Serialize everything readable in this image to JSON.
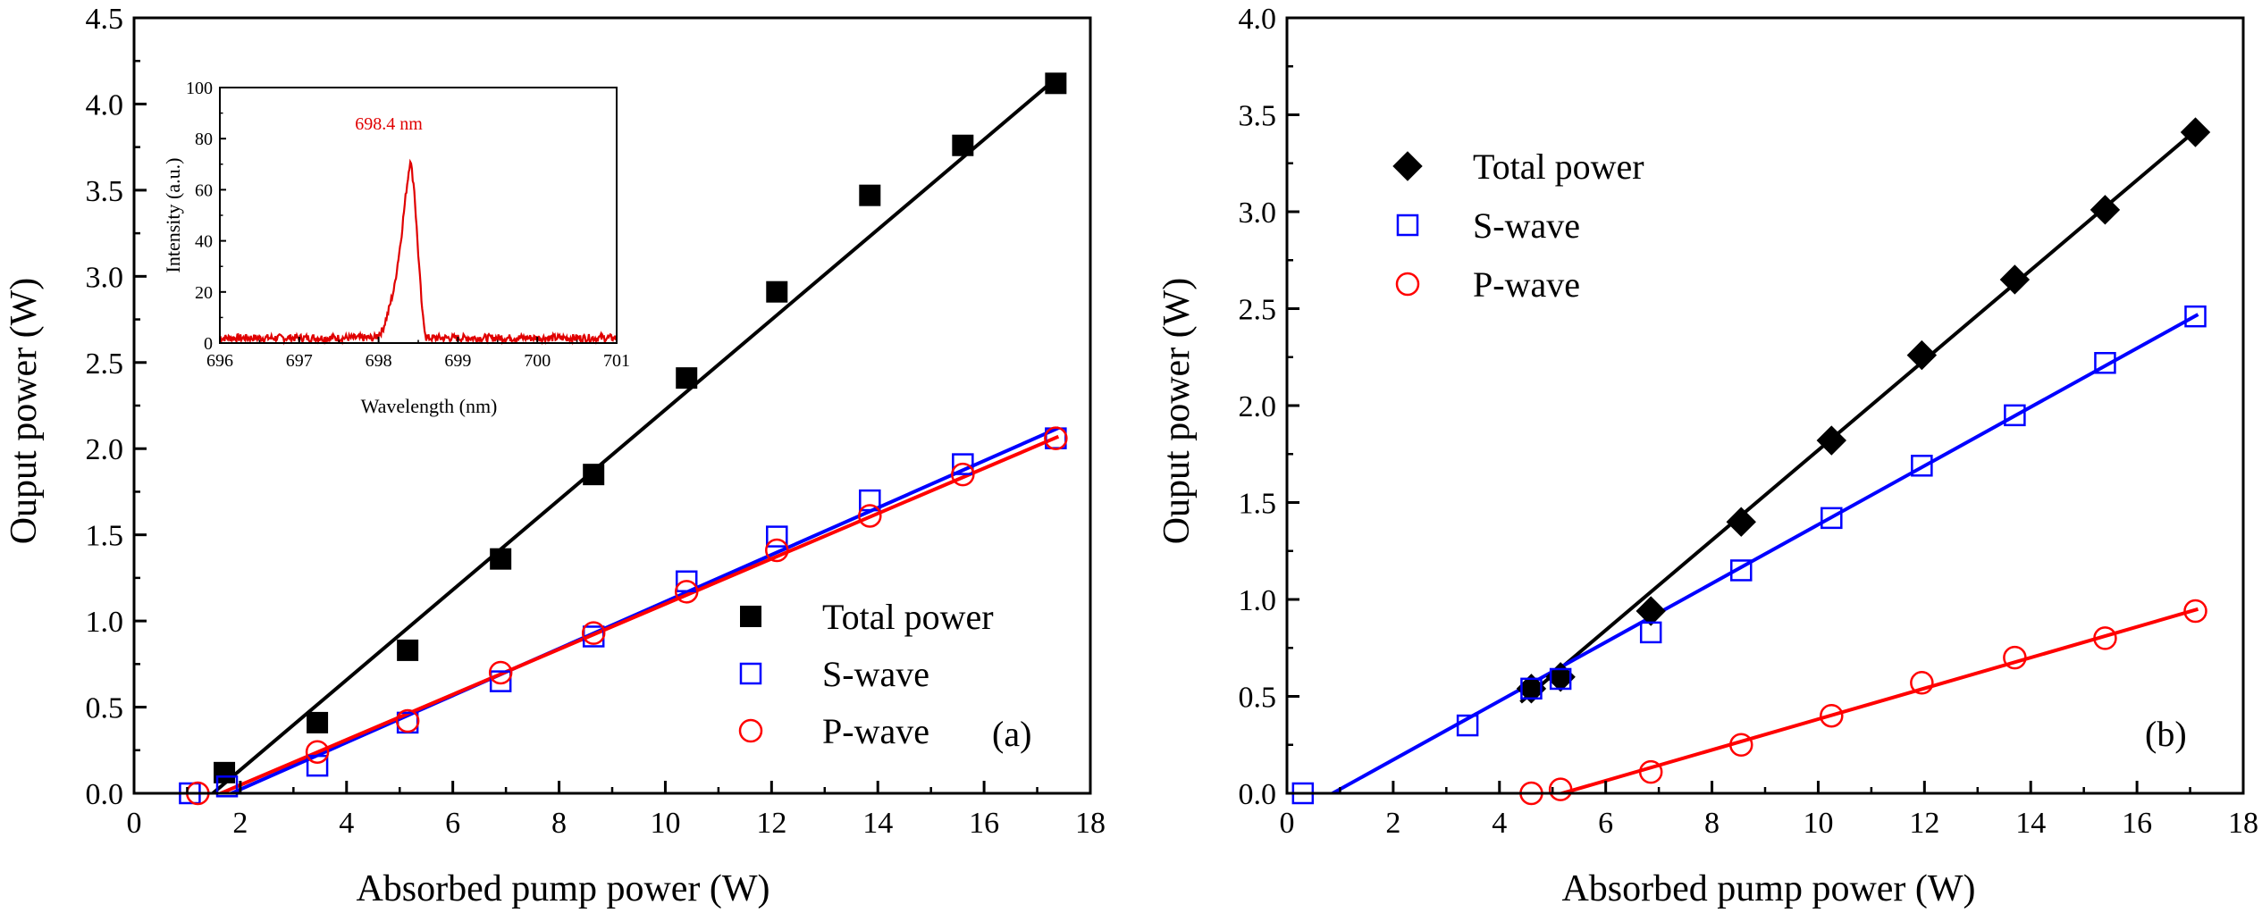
{
  "chart_data": [
    {
      "type": "scatter",
      "panel_label": "(a)",
      "xlabel": "Absorbed pump power (W)",
      "ylabel": "Ouput power (W)",
      "xlim": [
        0,
        18
      ],
      "ylim": [
        0,
        4.5
      ],
      "xticks": [
        "0",
        "2",
        "4",
        "6",
        "8",
        "10",
        "12",
        "14",
        "16",
        "18"
      ],
      "yticks": [
        "0.0",
        "0.5",
        "1.0",
        "1.5",
        "2.0",
        "2.5",
        "3.0",
        "3.5",
        "4.0",
        "4.5"
      ],
      "legend_position": "bottom-right",
      "series": [
        {
          "name": "Total power",
          "marker": "filled-square",
          "color": "#000000",
          "x": [
            1.7,
            3.45,
            5.15,
            6.9,
            8.65,
            10.4,
            12.1,
            13.85,
            15.6,
            17.35
          ],
          "y": [
            0.12,
            0.41,
            0.83,
            1.36,
            1.85,
            2.41,
            2.91,
            3.47,
            3.76,
            4.12
          ],
          "fit": [
            [
              1.1,
              -0.1
            ],
            [
              17.4,
              4.16
            ]
          ]
        },
        {
          "name": "S-wave",
          "marker": "open-square",
          "color": "#0000ff",
          "x": [
            1.05,
            1.75,
            3.45,
            5.15,
            6.9,
            8.65,
            10.4,
            12.1,
            13.85,
            15.6,
            17.35
          ],
          "y": [
            0.0,
            0.04,
            0.16,
            0.41,
            0.65,
            0.91,
            1.23,
            1.49,
            1.7,
            1.91,
            2.06
          ],
          "fit": [
            [
              1.1,
              -0.1
            ],
            [
              17.4,
              2.12
            ]
          ]
        },
        {
          "name": "P-wave",
          "marker": "open-circle",
          "color": "#ff0000",
          "x": [
            1.2,
            3.45,
            5.15,
            6.9,
            8.65,
            10.4,
            12.1,
            13.85,
            15.6,
            17.35
          ],
          "y": [
            0.0,
            0.24,
            0.42,
            0.7,
            0.93,
            1.17,
            1.41,
            1.61,
            1.85,
            2.06
          ],
          "fit": [
            [
              1.1,
              -0.07
            ],
            [
              17.4,
              2.07
            ]
          ]
        }
      ],
      "inset": {
        "type": "line",
        "xlabel": "Wavelength (nm)",
        "ylabel": "Intensity (a.u.)",
        "xlim": [
          696,
          701
        ],
        "ylim": [
          0,
          100
        ],
        "xticks": [
          "696",
          "697",
          "698",
          "699",
          "700",
          "701"
        ],
        "yticks": [
          "0",
          "20",
          "40",
          "60",
          "80",
          "100"
        ],
        "annotation": "698.4 nm",
        "color": "#e00000",
        "x": [
          696.0,
          697.95,
          698.05,
          698.12,
          698.2,
          698.28,
          698.35,
          698.4,
          698.45,
          698.5,
          698.55,
          698.6,
          701.0
        ],
        "y": [
          2,
          2,
          5,
          12,
          22,
          40,
          60,
          72,
          60,
          35,
          12,
          2,
          2
        ]
      }
    },
    {
      "type": "scatter",
      "panel_label": "(b)",
      "xlabel": "Absorbed pump power (W)",
      "ylabel": "Ouput power (W)",
      "xlim": [
        0,
        18
      ],
      "ylim": [
        0,
        4.0
      ],
      "xticks": [
        "0",
        "2",
        "4",
        "6",
        "8",
        "10",
        "12",
        "14",
        "16",
        "18"
      ],
      "yticks": [
        "0.0",
        "0.5",
        "1.0",
        "1.5",
        "2.0",
        "2.5",
        "3.0",
        "3.5",
        "4.0"
      ],
      "legend_position": "top-left",
      "series": [
        {
          "name": "Total power",
          "marker": "filled-diamond",
          "color": "#000000",
          "x": [
            4.6,
            5.15,
            6.85,
            8.55,
            10.25,
            11.95,
            13.7,
            15.4,
            17.1
          ],
          "y": [
            0.54,
            0.6,
            0.94,
            1.4,
            1.82,
            2.26,
            2.65,
            3.01,
            3.41
          ],
          "fit": [
            [
              4.4,
              0.47
            ],
            [
              17.15,
              3.43
            ]
          ]
        },
        {
          "name": "S-wave",
          "marker": "open-square",
          "color": "#0000ff",
          "x": [
            0.3,
            3.4,
            4.6,
            5.15,
            6.85,
            8.55,
            10.25,
            11.95,
            13.7,
            15.4,
            17.1
          ],
          "y": [
            0.0,
            0.35,
            0.54,
            0.59,
            0.83,
            1.15,
            1.42,
            1.69,
            1.95,
            2.22,
            2.46
          ],
          "fit": [
            [
              0.2,
              -0.1
            ],
            [
              17.15,
              2.47
            ]
          ]
        },
        {
          "name": "P-wave",
          "marker": "open-circle",
          "color": "#ff0000",
          "x": [
            4.6,
            5.15,
            6.85,
            8.55,
            10.25,
            11.95,
            13.7,
            15.4,
            17.1
          ],
          "y": [
            0.0,
            0.02,
            0.11,
            0.25,
            0.4,
            0.57,
            0.7,
            0.8,
            0.94
          ],
          "fit": [
            [
              4.55,
              -0.05
            ],
            [
              17.15,
              0.95
            ]
          ]
        }
      ]
    }
  ]
}
